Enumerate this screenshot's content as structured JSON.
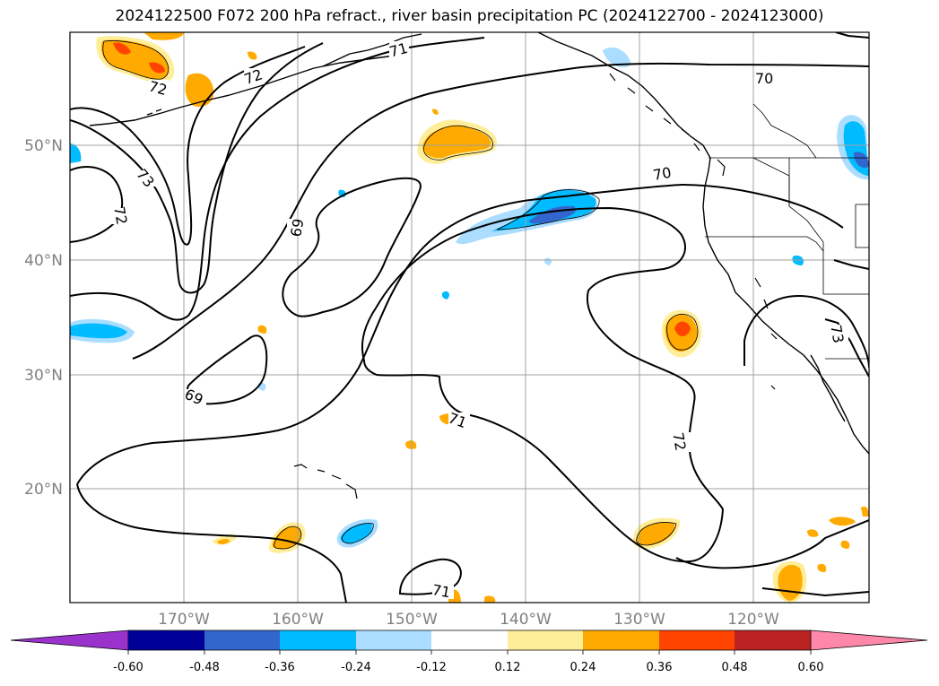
{
  "title": "2024122500 F072 200 hPa refract., river basin precipitation PC (2024122700 - 2024123000)",
  "lat_labels": [
    "50°N",
    "40°N",
    "30°N",
    "20°N"
  ],
  "lon_labels": [
    "170°W",
    "160°W",
    "150°W",
    "140°W",
    "130°W",
    "120°W"
  ],
  "contour_labels": [
    "72",
    "71",
    "72",
    "70",
    "73",
    "72",
    "69",
    "70",
    "69",
    "71",
    "72",
    "73",
    "71"
  ],
  "colorbar": {
    "ticks": [
      "-0.60",
      "-0.48",
      "-0.36",
      "-0.24",
      "-0.12",
      "0.12",
      "0.24",
      "0.36",
      "0.48",
      "0.60"
    ],
    "colors": [
      "#9933cc",
      "#000099",
      "#3366cc",
      "#00bbff",
      "#aaddff",
      "#ffffff",
      "#ffee99",
      "#ffaa00",
      "#ff4400",
      "#bb2222",
      "#ff88aa"
    ]
  },
  "fill_colors": {
    "neg_light": "#aaddff",
    "neg_mid": "#00bbff",
    "neg_dark": "#3366cc",
    "pos_light": "#ffee99",
    "pos_mid": "#ffaa00",
    "pos_dark": "#ff4400"
  }
}
